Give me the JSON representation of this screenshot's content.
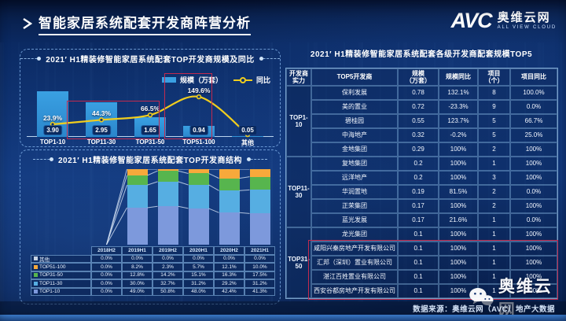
{
  "page": {
    "title": "智能家居系统配套开发商阵营分析",
    "logo": {
      "mark": "AVC",
      "name": "奥维云网",
      "tagline": "ALL VIEW CLOUD"
    },
    "footer_source": "数据来源：奥维云网（AVC）地产大数据",
    "watermark": "奥维云网"
  },
  "colors": {
    "bar_blue": "#2e93d9",
    "line_yellow": "#f0cd1e",
    "accent_red": "#c22a4e",
    "TOP1-10": "#7d99dc",
    "TOP11-30": "#56aee2",
    "TOP31-50": "#57b54e",
    "TOP51-100": "#f7a93b",
    "其他": "#c6d2e4"
  },
  "chart_data": [
    {
      "id": "scale_and_yoy",
      "type": "bar",
      "title": "2021′ H1精装修智能家居系统配套TOP开发商规模及同比",
      "categories": [
        "TOP1-10",
        "TOP11-30",
        "TOP31-50",
        "TOP51-100",
        "其他"
      ],
      "series": [
        {
          "name": "规模（万套）",
          "type": "bar",
          "values": [
            3.9,
            2.95,
            1.65,
            0.94,
            0.05
          ],
          "labels": [
            "3.90",
            "2.95",
            "1.65",
            "0.94",
            "0.05"
          ]
        },
        {
          "name": "同比",
          "type": "line",
          "values": [
            23.9,
            44.3,
            66.5,
            149.6,
            null
          ],
          "labels": [
            "23.9%",
            "44.3%",
            "66.5%",
            "149.6%",
            ""
          ]
        }
      ],
      "ylabel": "",
      "xlabel": "",
      "grid": false,
      "legend_position": "top-right",
      "highlight_boxes": [
        "TOP11-30 & TOP31-50",
        "TOP51-100"
      ]
    },
    {
      "id": "structure",
      "type": "bar",
      "stacked": true,
      "unit": "%",
      "title": "2021′ H1精装修智能家居系统配套TOP开发商结构",
      "categories": [
        "2018H2",
        "2019H1",
        "2019H2",
        "2020H1",
        "2020H2",
        "2021H1"
      ],
      "series": [
        {
          "name": "其他",
          "values": [
            0.0,
            0.0,
            0.0,
            0.0,
            0.0,
            0.0
          ]
        },
        {
          "name": "TOP51-100",
          "values": [
            0.0,
            8.2,
            2.3,
            5.7,
            12.1,
            10.0
          ]
        },
        {
          "name": "TOP31-50",
          "values": [
            0.0,
            12.8,
            14.2,
            15.1,
            16.3,
            17.5
          ]
        },
        {
          "name": "TOP11-30",
          "values": [
            0.0,
            30.0,
            32.7,
            31.2,
            29.2,
            31.2
          ]
        },
        {
          "name": "TOP1-10",
          "values": [
            0.0,
            49.0,
            50.8,
            48.0,
            42.4,
            41.3
          ]
        }
      ],
      "ylim": [
        0,
        100
      ]
    },
    {
      "id": "top5_table",
      "type": "table",
      "title": "2021′ H1精装修智能家居系统配套各级开发商配套规模TOP5",
      "headers": [
        "开发商\n实力",
        "TOP5开发商",
        "规模\n（万套）",
        "规模同比",
        "项目\n（个）",
        "项目同比"
      ],
      "groups": [
        {
          "label": "TOP1-\n10",
          "rows": [
            [
              "保利发展",
              "0.78",
              "132.1%",
              "8",
              "100.0%"
            ],
            [
              "美的置业",
              "0.72",
              "-23.3%",
              "9",
              "0.0%"
            ],
            [
              "碧桂园",
              "0.55",
              "123.7%",
              "5",
              "66.7%"
            ],
            [
              "中海地产",
              "0.32",
              "-0.2%",
              "5",
              "25.0%"
            ],
            [
              "金地集团",
              "0.29",
              "100%",
              "2",
              "100%"
            ]
          ]
        },
        {
          "label": "TOP11-\n30",
          "rows": [
            [
              "复地集团",
              "0.2",
              "100%",
              "1",
              "100%"
            ],
            [
              "远洋地产",
              "0.2",
              "100%",
              "3",
              "100%"
            ],
            [
              "华润置地",
              "0.19",
              "81.5%",
              "2",
              "0.0%"
            ],
            [
              "正荣集团",
              "0.17",
              "100%",
              "2",
              "100%"
            ],
            [
              "蓝光发展",
              "0.17",
              "21.6%",
              "1",
              "0.0%"
            ]
          ]
        },
        {
          "label": "TOP31-\n50",
          "rows": [
            [
              "龙光集团",
              "0.1",
              "100%",
              "1",
              "100%"
            ],
            [
              "咸阳兴秦房地产开发有限公司",
              "0.1",
              "100%",
              "1",
              "100%"
            ],
            [
              "汇邦（深圳）置业有限公司",
              "0.1",
              "100%",
              "1",
              "100%"
            ],
            [
              "湛江百姓置业有限公司",
              "0.1",
              "100%",
              "1",
              "100%"
            ],
            [
              "西安谷都房地产开发有限公司",
              "0.1",
              "100%",
              "1",
              "100%"
            ]
          ]
        }
      ],
      "highlighted_rows": [
        "咸阳兴秦房地产开发有限公司",
        "汇邦（深圳）置业有限公司",
        "湛江百姓置业有限公司",
        "西安谷都房地产开发有限公司"
      ]
    }
  ]
}
